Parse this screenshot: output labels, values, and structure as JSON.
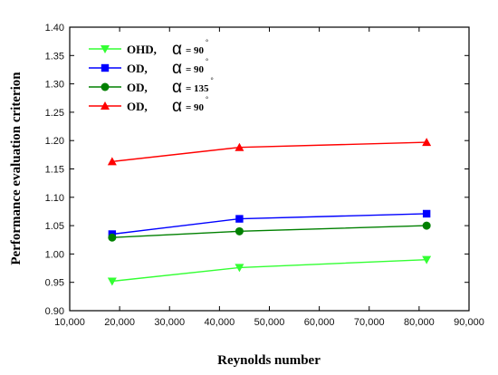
{
  "chart_data": {
    "type": "line",
    "xlabel": "Reynolds number",
    "ylabel": "Performance evaluation criterion",
    "xlim": [
      10000,
      90000
    ],
    "ylim": [
      0.9,
      1.4
    ],
    "xticks": [
      "10,000",
      "20,000",
      "30,000",
      "40,000",
      "50,000",
      "60,000",
      "70,000",
      "80,000",
      "90,000"
    ],
    "xtick_values": [
      10000,
      20000,
      30000,
      40000,
      50000,
      60000,
      70000,
      80000,
      90000
    ],
    "yticks": [
      "0.90",
      "0.95",
      "1.00",
      "1.05",
      "1.10",
      "1.15",
      "1.20",
      "1.25",
      "1.30",
      "1.35",
      "1.40"
    ],
    "ytick_values": [
      0.9,
      0.95,
      1.0,
      1.05,
      1.1,
      1.15,
      1.2,
      1.25,
      1.3,
      1.35,
      1.4
    ],
    "x": [
      18500,
      44000,
      81500
    ],
    "legend_position": "top-left",
    "series": [
      {
        "name": "OHD,",
        "angle_symbol": "α",
        "angle_value": "= 90",
        "degree": "°",
        "color": "#33ff33",
        "marker": "triangle-down",
        "values": [
          0.952,
          0.976,
          0.99
        ]
      },
      {
        "name": "OD,",
        "angle_symbol": "α",
        "angle_value": "= 90",
        "degree": "°",
        "color": "#0000ff",
        "marker": "square",
        "values": [
          1.035,
          1.062,
          1.071
        ]
      },
      {
        "name": "OD,",
        "angle_symbol": "α",
        "angle_value": "= 135",
        "degree": "°",
        "color": "#008000",
        "marker": "circle",
        "values": [
          1.029,
          1.04,
          1.05
        ]
      },
      {
        "name": "OD,",
        "angle_symbol": "α",
        "angle_value": "= 90",
        "degree": "°",
        "color": "#ff0000",
        "marker": "triangle-up",
        "values": [
          1.163,
          1.188,
          1.197
        ]
      }
    ]
  }
}
